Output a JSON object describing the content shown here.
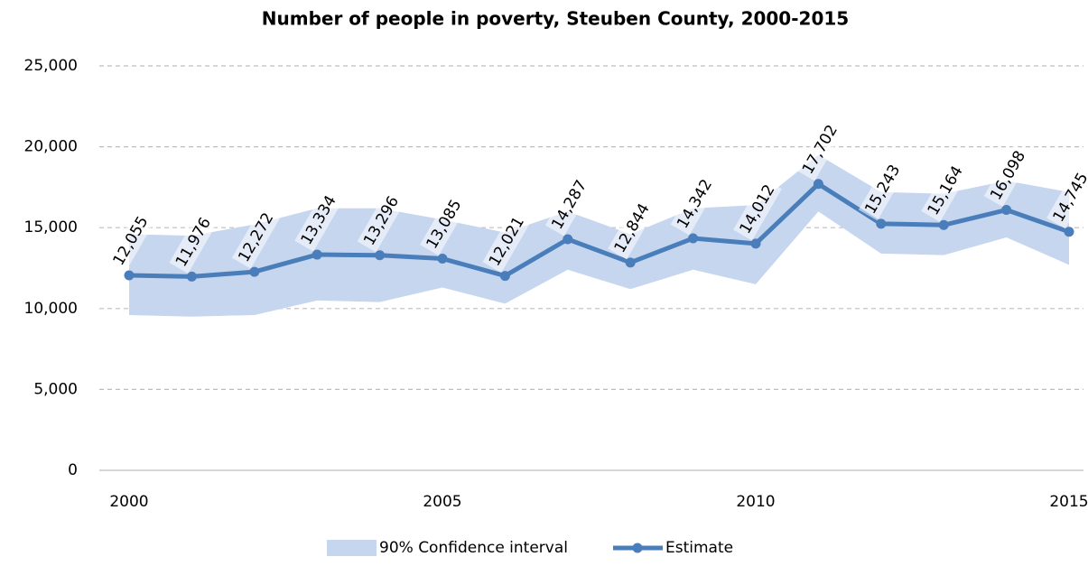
{
  "chart_data": {
    "type": "line",
    "title": "Number of people in poverty, Steuben County, 2000-2015",
    "x": [
      2000,
      2001,
      2002,
      2003,
      2004,
      2005,
      2006,
      2007,
      2008,
      2009,
      2010,
      2011,
      2012,
      2013,
      2014,
      2015
    ],
    "xlim": [
      2000,
      2015
    ],
    "xticks": [
      2000,
      2005,
      2010,
      2015
    ],
    "ylim": [
      0,
      25000
    ],
    "yticks": [
      0,
      {
        "value": 5000,
        "label": "5,000"
      },
      {
        "value": 10000,
        "label": "10,000"
      },
      {
        "value": 15000,
        "label": "15,000"
      },
      {
        "value": 20000,
        "label": "20,000"
      },
      {
        "value": 25000,
        "label": "25,000"
      }
    ],
    "grid": true,
    "series": [
      {
        "name": "90% Confidence interval",
        "color": "#c6d6ef",
        "upper": [
          14600,
          14500,
          15200,
          16200,
          16200,
          15500,
          14700,
          16000,
          14600,
          16200,
          16400,
          19500,
          17200,
          17100,
          17900,
          17200
        ],
        "lower": [
          9600,
          9500,
          9600,
          10500,
          10400,
          11300,
          10300,
          12400,
          11200,
          12400,
          11500,
          16000,
          13400,
          13300,
          14400,
          12700
        ]
      },
      {
        "name": "Estimate",
        "color": "#4a7ebb",
        "values": [
          12055,
          11976,
          12272,
          13334,
          13296,
          13085,
          12021,
          14287,
          12844,
          14342,
          14012,
          17702,
          15243,
          15164,
          16098,
          14745
        ],
        "value_labels": [
          "12,055",
          "11,976",
          "12,272",
          "13,334",
          "13,296",
          "13,085",
          "12,021",
          "14,287",
          "12,844",
          "14,342",
          "14,012",
          "17,702",
          "15,243",
          "15,164",
          "16,098",
          "14,745"
        ]
      }
    ]
  }
}
